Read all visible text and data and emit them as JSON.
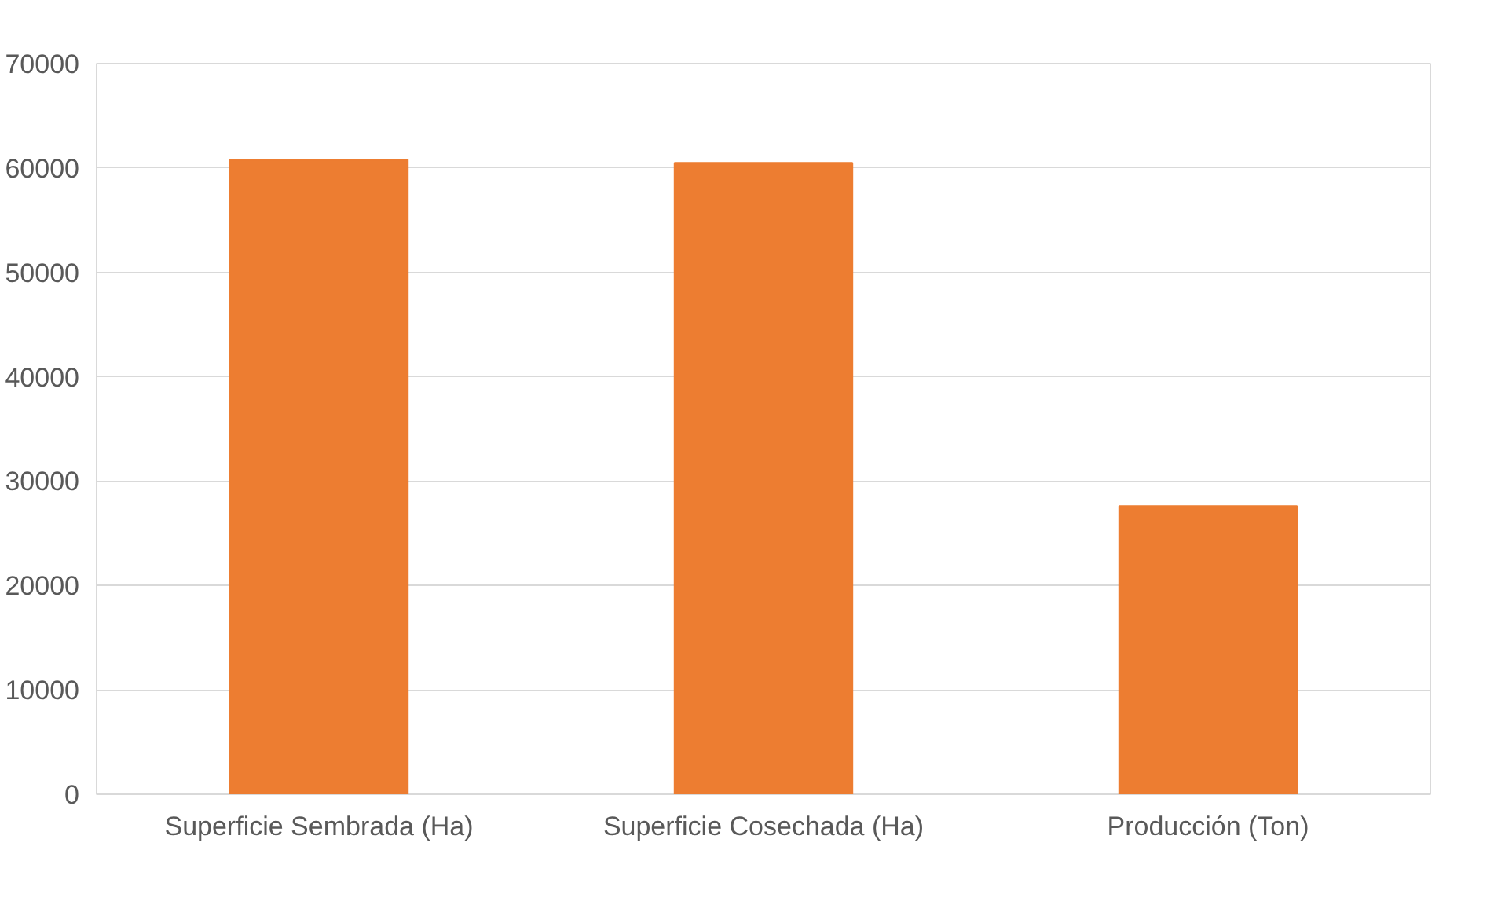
{
  "chart_data": {
    "type": "bar",
    "categories": [
      "Superficie Sembrada (Ha)",
      "Superficie Cosechada (Ha)",
      "Producción (Ton)"
    ],
    "values": [
      60800,
      60500,
      27600
    ],
    "color": "#ed7d31",
    "ylim": [
      0,
      70000
    ],
    "yticks": [
      0,
      10000,
      20000,
      30000,
      40000,
      50000,
      60000,
      70000
    ],
    "grid": "y"
  }
}
